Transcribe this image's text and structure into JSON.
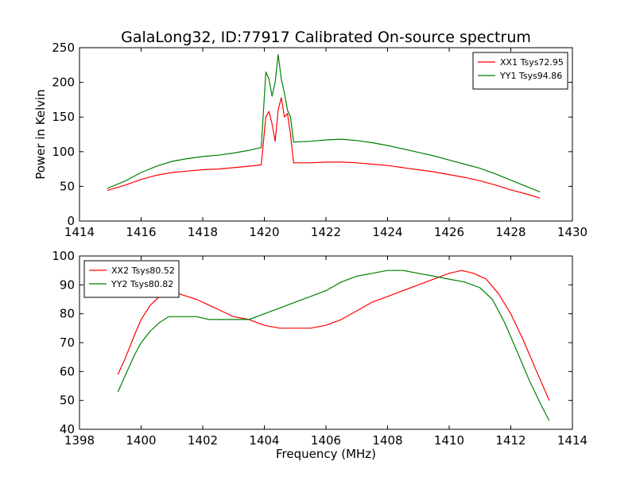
{
  "figure": {
    "title": "GalaLong32, ID:77917 Calibrated On-source spectrum"
  },
  "chart_data": [
    {
      "type": "line",
      "title": "GalaLong32, ID:77917 Calibrated On-source spectrum",
      "xlabel": "",
      "ylabel": "Power in Kelvin",
      "xlim": [
        1414,
        1430
      ],
      "ylim": [
        0,
        250
      ],
      "xticks": [
        1414,
        1416,
        1418,
        1420,
        1422,
        1424,
        1426,
        1428,
        1430
      ],
      "yticks": [
        0,
        50,
        100,
        150,
        200,
        250
      ],
      "grid": false,
      "legend_position": "top-right",
      "series": [
        {
          "name": "XX1 Tsys72.95",
          "color": "#ff0000",
          "x": [
            1414.9,
            1415.5,
            1416.0,
            1416.5,
            1417.0,
            1417.5,
            1418.0,
            1418.5,
            1419.0,
            1419.5,
            1419.9,
            1420.05,
            1420.15,
            1420.25,
            1420.35,
            1420.45,
            1420.55,
            1420.65,
            1420.75,
            1420.85,
            1420.95,
            1421.5,
            1422.0,
            1422.5,
            1423.0,
            1423.5,
            1424.0,
            1424.5,
            1425.0,
            1425.5,
            1426.0,
            1426.5,
            1427.0,
            1427.5,
            1428.0,
            1428.5,
            1428.95
          ],
          "values": [
            44,
            52,
            60,
            66,
            70,
            72,
            74,
            75,
            77,
            79,
            81,
            150,
            158,
            140,
            115,
            160,
            178,
            150,
            155,
            125,
            84,
            84,
            85,
            85,
            84,
            82,
            80,
            77,
            74,
            71,
            67,
            63,
            58,
            52,
            45,
            39,
            33
          ]
        },
        {
          "name": "YY1 Tsys94.86",
          "color": "#008000",
          "x": [
            1414.9,
            1415.5,
            1416.0,
            1416.5,
            1417.0,
            1417.5,
            1418.0,
            1418.5,
            1419.0,
            1419.5,
            1419.9,
            1420.05,
            1420.15,
            1420.25,
            1420.35,
            1420.45,
            1420.55,
            1420.65,
            1420.75,
            1420.85,
            1420.95,
            1421.5,
            1422.0,
            1422.5,
            1423.0,
            1423.5,
            1424.0,
            1424.5,
            1425.0,
            1425.5,
            1426.0,
            1426.5,
            1427.0,
            1427.5,
            1428.0,
            1428.5,
            1428.95
          ],
          "values": [
            47,
            58,
            70,
            79,
            86,
            90,
            93,
            95,
            98,
            102,
            106,
            215,
            205,
            180,
            200,
            240,
            205,
            185,
            160,
            150,
            114,
            115,
            117,
            118,
            116,
            113,
            109,
            104,
            99,
            94,
            88,
            82,
            76,
            68,
            59,
            50,
            42
          ]
        }
      ]
    },
    {
      "type": "line",
      "title": "",
      "xlabel": "Frequency (MHz)",
      "ylabel": "",
      "xlim": [
        1398,
        1414
      ],
      "ylim": [
        40,
        100
      ],
      "xticks": [
        1398,
        1400,
        1402,
        1404,
        1406,
        1408,
        1410,
        1412,
        1414
      ],
      "yticks": [
        40,
        50,
        60,
        70,
        80,
        90,
        100
      ],
      "grid": false,
      "legend_position": "top-left",
      "series": [
        {
          "name": "XX2 Tsys80.52",
          "color": "#ff0000",
          "x": [
            1399.25,
            1399.5,
            1399.8,
            1400.0,
            1400.3,
            1400.6,
            1400.9,
            1401.2,
            1401.5,
            1401.8,
            1402.2,
            1402.6,
            1403.0,
            1403.5,
            1404.0,
            1404.5,
            1405.0,
            1405.5,
            1406.0,
            1406.5,
            1407.0,
            1407.5,
            1408.0,
            1408.5,
            1409.0,
            1409.5,
            1410.0,
            1410.4,
            1410.8,
            1411.2,
            1411.6,
            1412.0,
            1412.4,
            1412.8,
            1413.25
          ],
          "values": [
            59,
            65,
            73,
            78,
            83,
            86,
            87,
            87,
            86,
            85,
            83,
            81,
            79,
            78,
            76,
            75,
            75,
            75,
            76,
            78,
            81,
            84,
            86,
            88,
            90,
            92,
            94,
            95,
            94,
            92,
            87,
            80,
            71,
            61,
            50
          ]
        },
        {
          "name": "YY2 Tsys80.82",
          "color": "#008000",
          "x": [
            1399.25,
            1399.5,
            1399.8,
            1400.0,
            1400.3,
            1400.6,
            1400.9,
            1401.2,
            1401.5,
            1401.8,
            1402.2,
            1402.6,
            1403.0,
            1403.5,
            1404.0,
            1404.5,
            1405.0,
            1405.5,
            1406.0,
            1406.5,
            1407.0,
            1407.5,
            1408.0,
            1408.5,
            1409.0,
            1409.5,
            1410.0,
            1410.5,
            1411.0,
            1411.4,
            1411.8,
            1412.2,
            1412.6,
            1413.0,
            1413.25
          ],
          "values": [
            53,
            59,
            66,
            70,
            74,
            77,
            79,
            79,
            79,
            79,
            78,
            78,
            78,
            78,
            80,
            82,
            84,
            86,
            88,
            91,
            93,
            94,
            95,
            95,
            94,
            93,
            92,
            91,
            89,
            85,
            77,
            67,
            57,
            48,
            43
          ]
        }
      ]
    }
  ]
}
